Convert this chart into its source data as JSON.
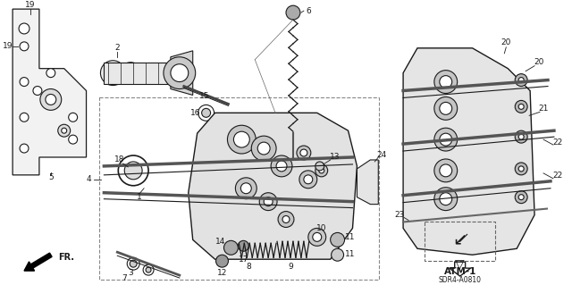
{
  "background_color": "#ffffff",
  "colors": {
    "background": "#ffffff",
    "lines": "#1a1a1a",
    "text": "#1a1a1a",
    "gray_light": "#e8e8e8",
    "gray_mid": "#cccccc",
    "gray_dark": "#888888",
    "dashed": "#777777"
  },
  "figsize": [
    6.4,
    3.19
  ],
  "dpi": 100,
  "labels": {
    "fr": "FR.",
    "atm": "ATM-1",
    "doc": "SDR4-A0810"
  }
}
